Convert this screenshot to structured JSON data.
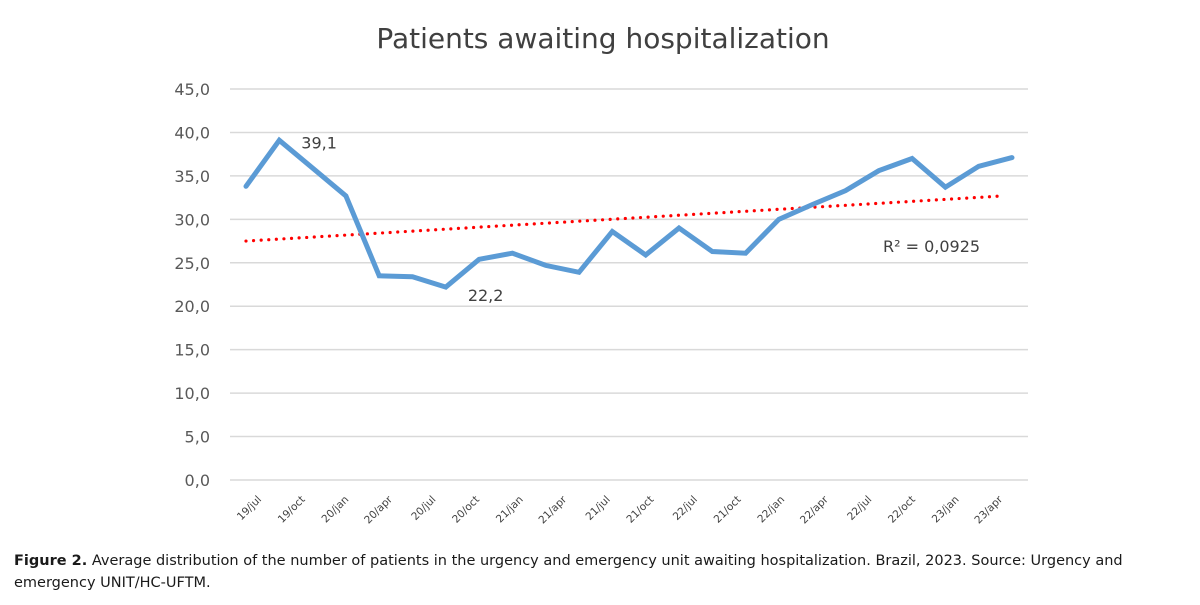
{
  "chart_data": {
    "type": "line",
    "title": "Patients awaiting hospitalization",
    "xlabel": "",
    "ylabel": "",
    "ylim": [
      0,
      45
    ],
    "yticks": [
      "0,0",
      "5,0",
      "10,0",
      "15,0",
      "20,0",
      "25,0",
      "30,0",
      "35,0",
      "40,0",
      "45,0"
    ],
    "ytick_values": [
      0,
      5,
      10,
      15,
      20,
      25,
      30,
      35,
      40,
      45
    ],
    "grid": true,
    "x_tick_labels": [
      "19/jul",
      "19/oct",
      "20/jan",
      "20/apr",
      "20/jul",
      "20/oct",
      "21/jan",
      "21/apr",
      "21/jul",
      "21/oct",
      "22/jul",
      "21/oct",
      "22/jan",
      "22/apr",
      "22/jul",
      "22/oct",
      "23/jan",
      "23/apr"
    ],
    "series": [
      {
        "name": "Patients awaiting hospitalization",
        "color": "#5b9bd5",
        "values": [
          33.8,
          39.1,
          35.9,
          32.7,
          23.5,
          23.4,
          22.2,
          25.4,
          26.1,
          24.7,
          23.9,
          28.6,
          25.9,
          29.0,
          26.3,
          26.1,
          30.0,
          31.7,
          33.3,
          35.6,
          37.0,
          33.7,
          36.1,
          37.1
        ]
      }
    ],
    "trendline": {
      "type": "linear",
      "color": "#ff0000",
      "style": "dotted",
      "start": 27.5,
      "end": 32.7,
      "label": "R² = 0,0925"
    },
    "annotations": [
      {
        "text": "39,1",
        "point_index": 1
      },
      {
        "text": "22,2",
        "point_index": 6
      }
    ]
  },
  "caption": {
    "label": "Figure 2.",
    "text": " Average distribution of the number of patients in the urgency and emergency unit awaiting hospitalization. Brazil, 2023. Source: Urgency and emergency UNIT/HC-UFTM."
  }
}
